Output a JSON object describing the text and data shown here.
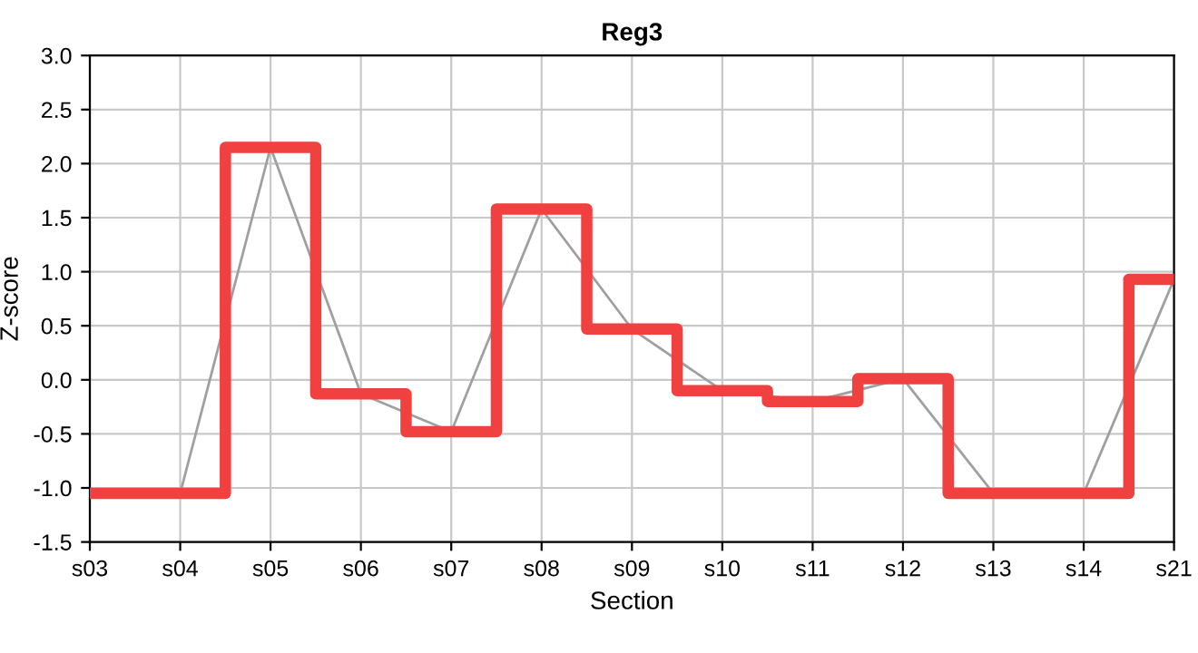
{
  "chart_data": {
    "type": "step",
    "title": "Reg3",
    "xlabel": "Section",
    "ylabel": "Z-score",
    "categories": [
      "s03",
      "s04",
      "s05",
      "s06",
      "s07",
      "s08",
      "s09",
      "s10",
      "s11",
      "s12",
      "s13",
      "s14",
      "s21"
    ],
    "series": [
      {
        "type": "line",
        "color": "#a0a0a0",
        "values": [
          -1.05,
          -1.05,
          2.15,
          -0.13,
          -0.48,
          1.58,
          0.47,
          -0.1,
          -0.2,
          0.01,
          -1.05,
          -1.05,
          0.93
        ]
      },
      {
        "color": "#f04040",
        "values": [
          -1.05,
          -1.05,
          2.15,
          -0.13,
          -0.48,
          1.58,
          0.47,
          -0.1,
          -0.2,
          0.01,
          -1.05,
          -1.05,
          0.93
        ]
      }
    ],
    "ylim": [
      -1.5,
      3.0
    ],
    "yticks": [
      {
        "value": -1.5,
        "label": "-1.5"
      },
      {
        "value": -1.0,
        "label": "-1.0"
      },
      {
        "value": -0.5,
        "label": "-0.5"
      },
      {
        "value": 0.0,
        "label": "0.0"
      },
      {
        "value": 0.5,
        "label": "0.5"
      },
      {
        "value": 1.0,
        "label": "1.0"
      },
      {
        "value": 1.5,
        "label": "1.5"
      },
      {
        "value": 2.0,
        "label": "2.0"
      },
      {
        "value": 2.5,
        "label": "2.5"
      },
      {
        "value": 3.0,
        "label": "3.0"
      }
    ],
    "grid": true
  }
}
